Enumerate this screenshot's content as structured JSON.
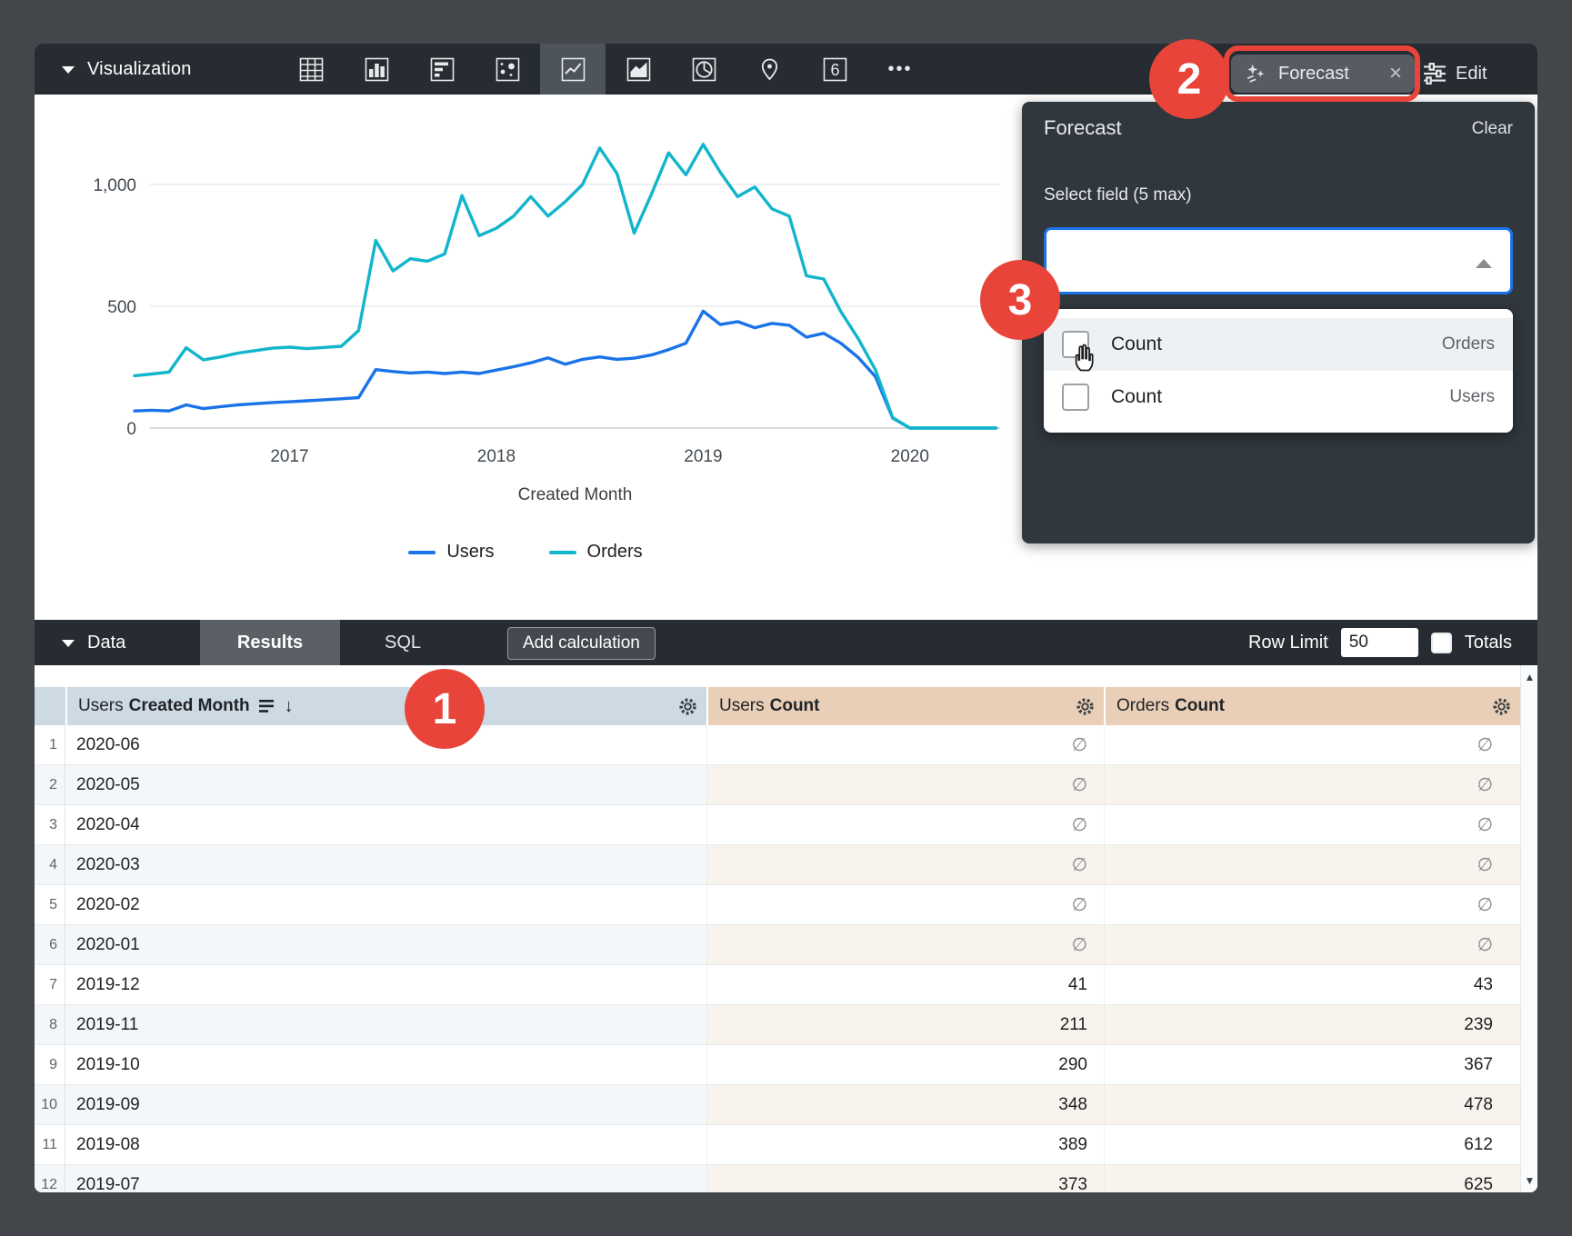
{
  "viz_toolbar": {
    "label": "Visualization",
    "chart_types": [
      "table",
      "column",
      "bar",
      "scatter",
      "line",
      "area",
      "pie",
      "map",
      "single-value",
      "more"
    ],
    "active_chart_type": "line",
    "single_value_glyph": "6",
    "forecast_button": {
      "label": "Forecast"
    },
    "edit_button": {
      "label": "Edit"
    }
  },
  "icons": {
    "close": "×",
    "more": "•••",
    "scroll_up": "▲",
    "scroll_down": "▼",
    "sort_desc": "↓"
  },
  "chart_data": {
    "type": "line",
    "title": "",
    "xlabel": "Created Month",
    "ylabel": "",
    "ylim": [
      0,
      1200
    ],
    "yticks": [
      0,
      500,
      1000
    ],
    "ytick_labels": [
      "0",
      "500",
      "1,000"
    ],
    "xtick_labels": [
      "2017",
      "2018",
      "2019",
      "2020"
    ],
    "grid": true,
    "legend_position": "bottom",
    "note": "2020 months are null in the table and plotted as 0",
    "x": [
      "2016-04",
      "2016-05",
      "2016-06",
      "2016-07",
      "2016-08",
      "2016-09",
      "2016-10",
      "2016-11",
      "2016-12",
      "2017-01",
      "2017-02",
      "2017-03",
      "2017-04",
      "2017-05",
      "2017-06",
      "2017-07",
      "2017-08",
      "2017-09",
      "2017-10",
      "2017-11",
      "2017-12",
      "2018-01",
      "2018-02",
      "2018-03",
      "2018-04",
      "2018-05",
      "2018-06",
      "2018-07",
      "2018-08",
      "2018-09",
      "2018-10",
      "2018-11",
      "2018-12",
      "2019-01",
      "2019-02",
      "2019-03",
      "2019-04",
      "2019-05",
      "2019-06",
      "2019-07",
      "2019-08",
      "2019-09",
      "2019-10",
      "2019-11",
      "2019-12",
      "2020-01",
      "2020-02",
      "2020-03",
      "2020-04",
      "2020-05",
      "2020-06"
    ],
    "series": [
      {
        "name": "Users",
        "color": "#1a73e8",
        "values": [
          70,
          73,
          70,
          95,
          80,
          88,
          95,
          100,
          105,
          108,
          112,
          116,
          120,
          125,
          240,
          232,
          226,
          230,
          224,
          230,
          224,
          238,
          252,
          268,
          288,
          262,
          282,
          292,
          282,
          287,
          300,
          322,
          348,
          480,
          425,
          437,
          412,
          430,
          422,
          373,
          389,
          348,
          290,
          211,
          41,
          0,
          0,
          0,
          0,
          0,
          0
        ]
      },
      {
        "name": "Orders",
        "color": "#12b5cb",
        "values": [
          215,
          222,
          230,
          330,
          280,
          292,
          308,
          318,
          328,
          332,
          326,
          331,
          336,
          400,
          770,
          645,
          695,
          685,
          715,
          955,
          790,
          820,
          870,
          950,
          870,
          930,
          1000,
          1150,
          1045,
          800,
          960,
          1130,
          1040,
          1165,
          1050,
          950,
          990,
          900,
          870,
          625,
          612,
          478,
          367,
          239,
          43,
          0,
          0,
          0,
          0,
          0,
          0
        ]
      }
    ]
  },
  "forecast_panel": {
    "title": "Forecast",
    "clear_label": "Clear",
    "select_label": "Select field (5 max)",
    "select_value": "",
    "options": [
      {
        "label": "Count",
        "view": "Orders",
        "checked": false,
        "hovered": true
      },
      {
        "label": "Count",
        "view": "Users",
        "checked": false,
        "hovered": false
      }
    ]
  },
  "data_bar": {
    "label": "Data",
    "tabs": [
      {
        "label": "Results",
        "active": true
      },
      {
        "label": "SQL",
        "active": false
      }
    ],
    "add_calculation_label": "Add calculation",
    "row_limit_label": "Row Limit",
    "row_limit_value": "50",
    "totals_label": "Totals",
    "totals_checked": false
  },
  "results_table": {
    "null_symbol": "∅",
    "headers": [
      {
        "view": "Users",
        "field": "Created Month",
        "sorted": "desc"
      },
      {
        "view": "Users",
        "field": "Count",
        "sorted": null
      },
      {
        "view": "Orders",
        "field": "Count",
        "sorted": null
      }
    ],
    "rows": [
      {
        "n": 1,
        "month": "2020-06",
        "users": null,
        "orders": null
      },
      {
        "n": 2,
        "month": "2020-05",
        "users": null,
        "orders": null
      },
      {
        "n": 3,
        "month": "2020-04",
        "users": null,
        "orders": null
      },
      {
        "n": 4,
        "month": "2020-03",
        "users": null,
        "orders": null
      },
      {
        "n": 5,
        "month": "2020-02",
        "users": null,
        "orders": null
      },
      {
        "n": 6,
        "month": "2020-01",
        "users": null,
        "orders": null
      },
      {
        "n": 7,
        "month": "2019-12",
        "users": 41,
        "orders": 43
      },
      {
        "n": 8,
        "month": "2019-11",
        "users": 211,
        "orders": 239
      },
      {
        "n": 9,
        "month": "2019-10",
        "users": 290,
        "orders": 367
      },
      {
        "n": 10,
        "month": "2019-09",
        "users": 348,
        "orders": 478
      },
      {
        "n": 11,
        "month": "2019-08",
        "users": 389,
        "orders": 612
      },
      {
        "n": 12,
        "month": "2019-07",
        "users": 373,
        "orders": 625
      }
    ]
  },
  "annotations": {
    "steps": [
      "1",
      "2",
      "3"
    ],
    "highlight_color": "#e8443a"
  },
  "colors": {
    "users_series": "#1a73e8",
    "orders_series": "#12b5cb",
    "dimension_header_bg": "#cdd9e3",
    "measure_header_bg": "#e9cfb7",
    "dark_bar_bg": "#262c31",
    "panel_bg": "#30373d",
    "accent_blue": "#1a73e8"
  }
}
